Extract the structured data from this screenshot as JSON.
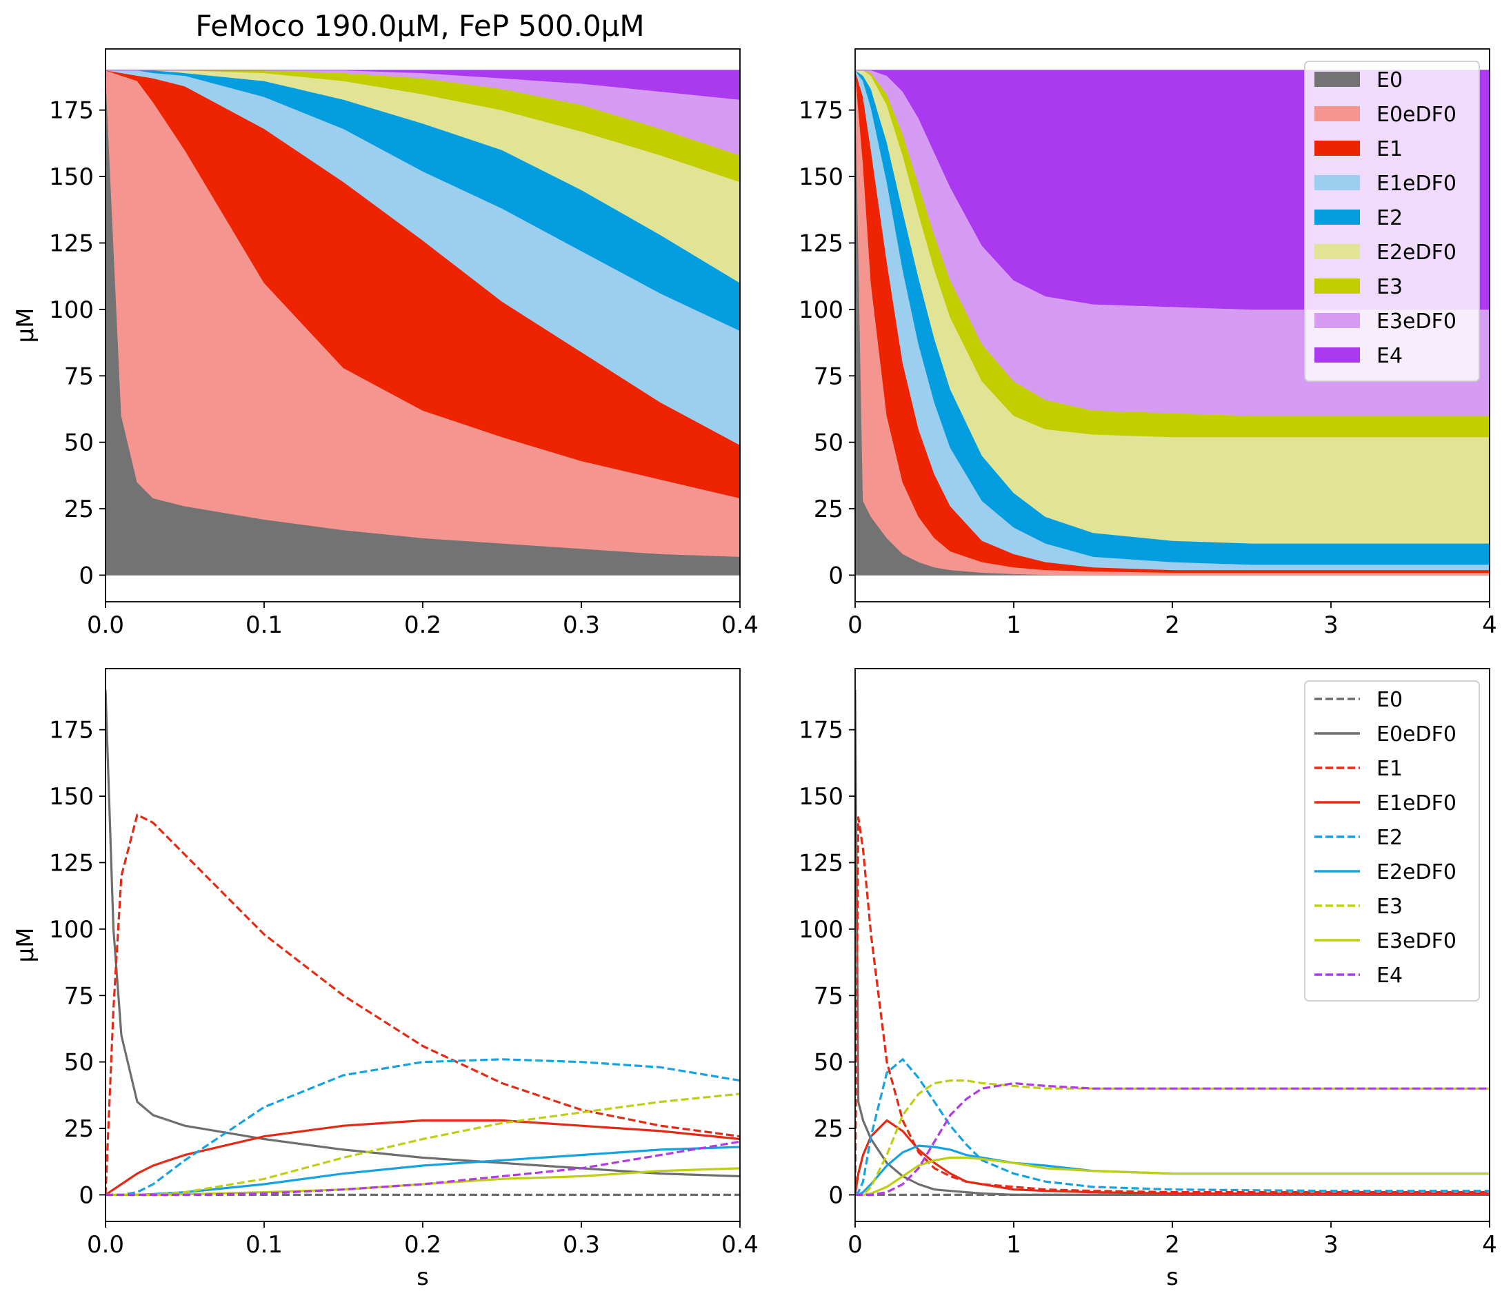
{
  "figure_title": "FeMoco 190.0μM, FeP 500.0μM",
  "colors": {
    "E0": "#737373",
    "E0eDF0": "#f59590",
    "E1": "#ee2400",
    "E1eDF0": "#9ccfef",
    "E2": "#049ee0",
    "E2eDF0": "#e1e495",
    "E3": "#c2ce00",
    "E3eDF0": "#d69cf4",
    "E4": "#aa39ef",
    "E0_line": "#6e6e6e",
    "E1_line": "#e42a14",
    "E2_line": "#14a2e0",
    "E3_line": "#bece12",
    "E4_line": "#b03ae6"
  },
  "legends": {
    "stack": [
      "E0",
      "E0eDF0",
      "E1",
      "E1eDF0",
      "E2",
      "E2eDF0",
      "E3",
      "E3eDF0",
      "E4"
    ],
    "lines": [
      "E0",
      "E0eDF0",
      "E1",
      "E1eDF0",
      "E2",
      "E2eDF0",
      "E3",
      "E3eDF0",
      "E4"
    ]
  },
  "chart_data": [
    {
      "type": "area",
      "panel": "top-left",
      "title": "FeMoco 190.0μM, FeP 500.0μM",
      "xlabel": "",
      "ylabel": "μM",
      "xlim": [
        0,
        0.4
      ],
      "ylim": [
        -10,
        198
      ],
      "xticks": [
        "0.0",
        "0.1",
        "0.2",
        "0.3",
        "0.4"
      ],
      "yticks": [
        "0",
        "25",
        "50",
        "75",
        "100",
        "125",
        "150",
        "175"
      ],
      "legend": "none",
      "x": [
        0,
        0.01,
        0.02,
        0.03,
        0.05,
        0.1,
        0.15,
        0.2,
        0.25,
        0.3,
        0.35,
        0.4
      ],
      "cumulative_tops": [
        {
          "name": "E0",
          "values": [
            190,
            60,
            35,
            29,
            26,
            21,
            17,
            14,
            12,
            10,
            8,
            7
          ]
        },
        {
          "name": "E0eDF0",
          "values": [
            190,
            188,
            186,
            178,
            160,
            110,
            78,
            62,
            52,
            43,
            36,
            29
          ]
        },
        {
          "name": "E1",
          "values": [
            190,
            189,
            188,
            187,
            184,
            168,
            148,
            126,
            103,
            84,
            65,
            49
          ]
        },
        {
          "name": "E1eDF0",
          "values": [
            190,
            190,
            190,
            189,
            188,
            180,
            168,
            152,
            138,
            122,
            106,
            92
          ]
        },
        {
          "name": "E2",
          "values": [
            190,
            190,
            190,
            190,
            189,
            186,
            179,
            170,
            160,
            145,
            128,
            110
          ]
        },
        {
          "name": "E2eDF0",
          "values": [
            190,
            190,
            190,
            190,
            190,
            189,
            186,
            181,
            175,
            167,
            158,
            148
          ]
        },
        {
          "name": "E3",
          "values": [
            190,
            190,
            190,
            190,
            190,
            190,
            189,
            187,
            183,
            177,
            168,
            158
          ]
        },
        {
          "name": "E3eDF0",
          "values": [
            190,
            190,
            190,
            190,
            190,
            190,
            190,
            189,
            187,
            185,
            182,
            179
          ]
        },
        {
          "name": "E4",
          "values": [
            190,
            190,
            190,
            190,
            190,
            190,
            190,
            190,
            190,
            190,
            190,
            190
          ]
        }
      ]
    },
    {
      "type": "area",
      "panel": "top-right",
      "xlabel": "",
      "ylabel": "",
      "xlim": [
        0,
        4
      ],
      "ylim": [
        -10,
        198
      ],
      "xticks": [
        "0",
        "1",
        "2",
        "3",
        "4"
      ],
      "yticks": [
        "0",
        "25",
        "50",
        "75",
        "100",
        "125",
        "150",
        "175"
      ],
      "legend": "top-right",
      "x": [
        0,
        0.05,
        0.1,
        0.2,
        0.3,
        0.4,
        0.5,
        0.6,
        0.8,
        1.0,
        1.2,
        1.5,
        2.0,
        2.5,
        3.0,
        4.0
      ],
      "cumulative_tops": [
        {
          "name": "E0",
          "values": [
            190,
            28,
            22,
            14,
            8,
            5,
            3,
            2,
            1,
            0.5,
            0.2,
            0,
            0,
            0,
            0,
            0
          ]
        },
        {
          "name": "E0eDF0",
          "values": [
            190,
            155,
            110,
            60,
            35,
            22,
            14,
            9,
            5,
            3,
            2,
            1.5,
            1,
            1,
            1,
            1
          ]
        },
        {
          "name": "E1",
          "values": [
            190,
            180,
            160,
            118,
            80,
            55,
            38,
            26,
            13,
            8,
            5,
            3,
            2,
            2,
            2,
            2
          ]
        },
        {
          "name": "E1eDF0",
          "values": [
            190,
            186,
            176,
            148,
            115,
            87,
            65,
            48,
            28,
            18,
            12,
            7,
            5,
            4,
            4,
            4
          ]
        },
        {
          "name": "E2",
          "values": [
            190,
            188,
            183,
            163,
            137,
            112,
            89,
            70,
            45,
            31,
            22,
            16,
            13,
            12,
            12,
            12
          ]
        },
        {
          "name": "E2eDF0",
          "values": [
            190,
            190,
            188,
            177,
            158,
            136,
            115,
            97,
            73,
            60,
            55,
            53,
            52,
            52,
            52,
            52
          ]
        },
        {
          "name": "E3",
          "values": [
            190,
            190,
            189,
            181,
            166,
            147,
            128,
            111,
            87,
            73,
            66,
            62,
            61,
            60,
            60,
            60
          ]
        },
        {
          "name": "E3eDF0",
          "values": [
            190,
            190,
            190,
            188,
            182,
            172,
            159,
            146,
            124,
            111,
            105,
            102,
            101,
            100,
            100,
            100
          ]
        },
        {
          "name": "E4",
          "values": [
            190,
            190,
            190,
            190,
            190,
            190,
            190,
            190,
            190,
            190,
            190,
            190,
            190,
            190,
            190,
            190
          ]
        }
      ]
    },
    {
      "type": "line",
      "panel": "bottom-left",
      "xlabel": "s",
      "ylabel": "μM",
      "xlim": [
        0,
        0.4
      ],
      "ylim": [
        -10,
        198
      ],
      "xticks": [
        "0.0",
        "0.1",
        "0.2",
        "0.3",
        "0.4"
      ],
      "yticks": [
        "0",
        "25",
        "50",
        "75",
        "100",
        "125",
        "150",
        "175"
      ],
      "legend": "none",
      "x": [
        0,
        0.005,
        0.01,
        0.02,
        0.03,
        0.05,
        0.1,
        0.15,
        0.2,
        0.25,
        0.3,
        0.35,
        0.4
      ],
      "series": [
        {
          "name": "E0",
          "dashed": true,
          "values": [
            0,
            0,
            0,
            0,
            0,
            0,
            0,
            0,
            0,
            0,
            0,
            0,
            0
          ]
        },
        {
          "name": "E0eDF0",
          "dashed": false,
          "values": [
            190,
            100,
            60,
            35,
            30,
            26,
            21,
            17,
            14,
            12,
            10,
            8,
            7
          ]
        },
        {
          "name": "E1",
          "dashed": true,
          "values": [
            0,
            70,
            120,
            143,
            140,
            128,
            98,
            75,
            56,
            42,
            32,
            26,
            22
          ]
        },
        {
          "name": "E1eDF0",
          "dashed": false,
          "values": [
            0,
            2,
            4,
            8,
            11,
            15,
            22,
            26,
            28,
            28,
            26,
            24,
            21
          ]
        },
        {
          "name": "E2",
          "dashed": true,
          "values": [
            0,
            0,
            0,
            1,
            4,
            13,
            33,
            45,
            50,
            51,
            50,
            48,
            43
          ]
        },
        {
          "name": "E2eDF0",
          "dashed": false,
          "values": [
            0,
            0,
            0,
            0,
            0.3,
            1,
            4,
            8,
            11,
            13,
            15,
            17,
            18
          ]
        },
        {
          "name": "E3",
          "dashed": true,
          "values": [
            0,
            0,
            0,
            0,
            0,
            1,
            6,
            14,
            21,
            27,
            31,
            35,
            38
          ]
        },
        {
          "name": "E3eDF0",
          "dashed": false,
          "values": [
            0,
            0,
            0,
            0,
            0,
            0.2,
            1,
            2,
            4,
            6,
            7,
            9,
            10
          ]
        },
        {
          "name": "E4",
          "dashed": true,
          "values": [
            0,
            0,
            0,
            0,
            0,
            0,
            0.5,
            2,
            4,
            7,
            10,
            15,
            20
          ]
        }
      ]
    },
    {
      "type": "line",
      "panel": "bottom-right",
      "xlabel": "s",
      "ylabel": "",
      "xlim": [
        0,
        4
      ],
      "ylim": [
        -10,
        198
      ],
      "xticks": [
        "0",
        "1",
        "2",
        "3",
        "4"
      ],
      "yticks": [
        "0",
        "25",
        "50",
        "75",
        "100",
        "125",
        "150",
        "175"
      ],
      "legend": "top-right",
      "x": [
        0,
        0.02,
        0.05,
        0.1,
        0.2,
        0.3,
        0.4,
        0.5,
        0.6,
        0.7,
        0.8,
        1.0,
        1.2,
        1.5,
        2.0,
        3.0,
        4.0
      ],
      "series": [
        {
          "name": "E0",
          "dashed": true,
          "values": [
            0,
            0,
            0,
            0,
            0,
            0,
            0,
            0,
            0,
            0,
            0,
            0,
            0,
            0,
            0,
            0,
            0
          ]
        },
        {
          "name": "E0eDF0",
          "dashed": false,
          "values": [
            190,
            35,
            28,
            21,
            12,
            7,
            4,
            2,
            1.5,
            1,
            0.5,
            0,
            0,
            0,
            0,
            0,
            0
          ]
        },
        {
          "name": "E1",
          "dashed": true,
          "values": [
            0,
            142,
            130,
            98,
            50,
            28,
            16,
            10,
            7,
            5,
            4,
            3,
            2,
            1.5,
            1,
            1,
            1
          ]
        },
        {
          "name": "E1eDF0",
          "dashed": false,
          "values": [
            0,
            8,
            15,
            22,
            28,
            24,
            17,
            12,
            8,
            5,
            4,
            2,
            1.5,
            1,
            0.5,
            0.5,
            0.5
          ]
        },
        {
          "name": "E2",
          "dashed": true,
          "values": [
            0,
            1,
            5,
            22,
            46,
            51,
            44,
            35,
            26,
            19,
            13,
            8,
            5,
            3,
            2,
            1.5,
            1.5
          ]
        },
        {
          "name": "E2eDF0",
          "dashed": false,
          "values": [
            0,
            0,
            1,
            4,
            11,
            16,
            18.5,
            18,
            17,
            15,
            14,
            12,
            11,
            9,
            8,
            8,
            8
          ]
        },
        {
          "name": "E3",
          "dashed": true,
          "values": [
            0,
            0,
            0,
            3,
            15,
            30,
            38,
            42,
            43,
            43,
            42,
            41,
            40,
            40,
            40,
            40,
            40
          ]
        },
        {
          "name": "E3eDF0",
          "dashed": false,
          "values": [
            0,
            0,
            0,
            0.5,
            3,
            7,
            11,
            13,
            14,
            14,
            13.5,
            12,
            10,
            9,
            8,
            8,
            8
          ]
        },
        {
          "name": "E4",
          "dashed": true,
          "values": [
            0,
            0,
            0,
            0,
            1,
            4,
            10,
            20,
            30,
            36,
            40,
            42,
            41,
            40,
            40,
            40,
            40
          ]
        }
      ]
    }
  ]
}
